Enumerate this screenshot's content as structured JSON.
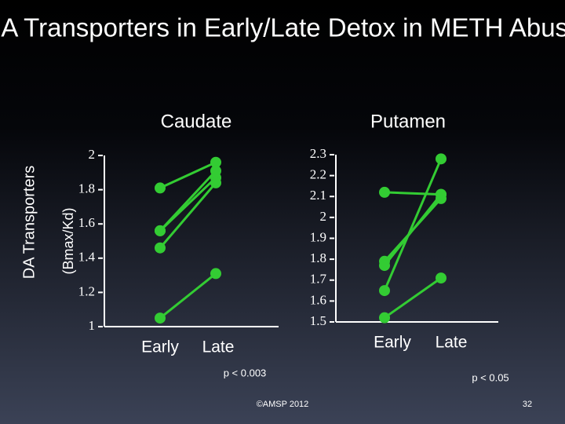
{
  "title": "DA Transporters in Early/Late Detox in METH Abuse",
  "outer_ylabel": "DA Transporters",
  "chart_data": [
    {
      "type": "line",
      "title": "Caudate",
      "ylabel": "(Bmax/Kd)",
      "categories": [
        "Early",
        "Late"
      ],
      "ylim": [
        1,
        2
      ],
      "yticks": [
        1,
        1.2,
        1.4,
        1.6,
        1.8,
        2
      ],
      "color": "#33cc33",
      "series": [
        {
          "values": [
            1.81,
            1.96
          ]
        },
        {
          "values": [
            1.56,
            1.91
          ]
        },
        {
          "values": [
            1.56,
            1.87
          ]
        },
        {
          "values": [
            1.46,
            1.84
          ]
        },
        {
          "values": [
            1.05,
            1.31
          ]
        }
      ],
      "annotation": "p < 0.003"
    },
    {
      "type": "line",
      "title": "Putamen",
      "categories": [
        "Early",
        "Late"
      ],
      "ylim": [
        1.5,
        2.3
      ],
      "yticks": [
        1.5,
        1.6,
        1.7,
        1.8,
        1.9,
        2,
        2.1,
        2.2,
        2.3
      ],
      "color": "#33cc33",
      "series": [
        {
          "values": [
            2.12,
            2.11
          ]
        },
        {
          "values": [
            1.79,
            2.09
          ]
        },
        {
          "values": [
            1.77,
            2.11
          ]
        },
        {
          "values": [
            1.65,
            2.28
          ]
        },
        {
          "values": [
            1.52,
            1.71
          ]
        }
      ],
      "annotation": "p < 0.05"
    }
  ],
  "footer": "©AMSP 2012",
  "page_number": "32"
}
